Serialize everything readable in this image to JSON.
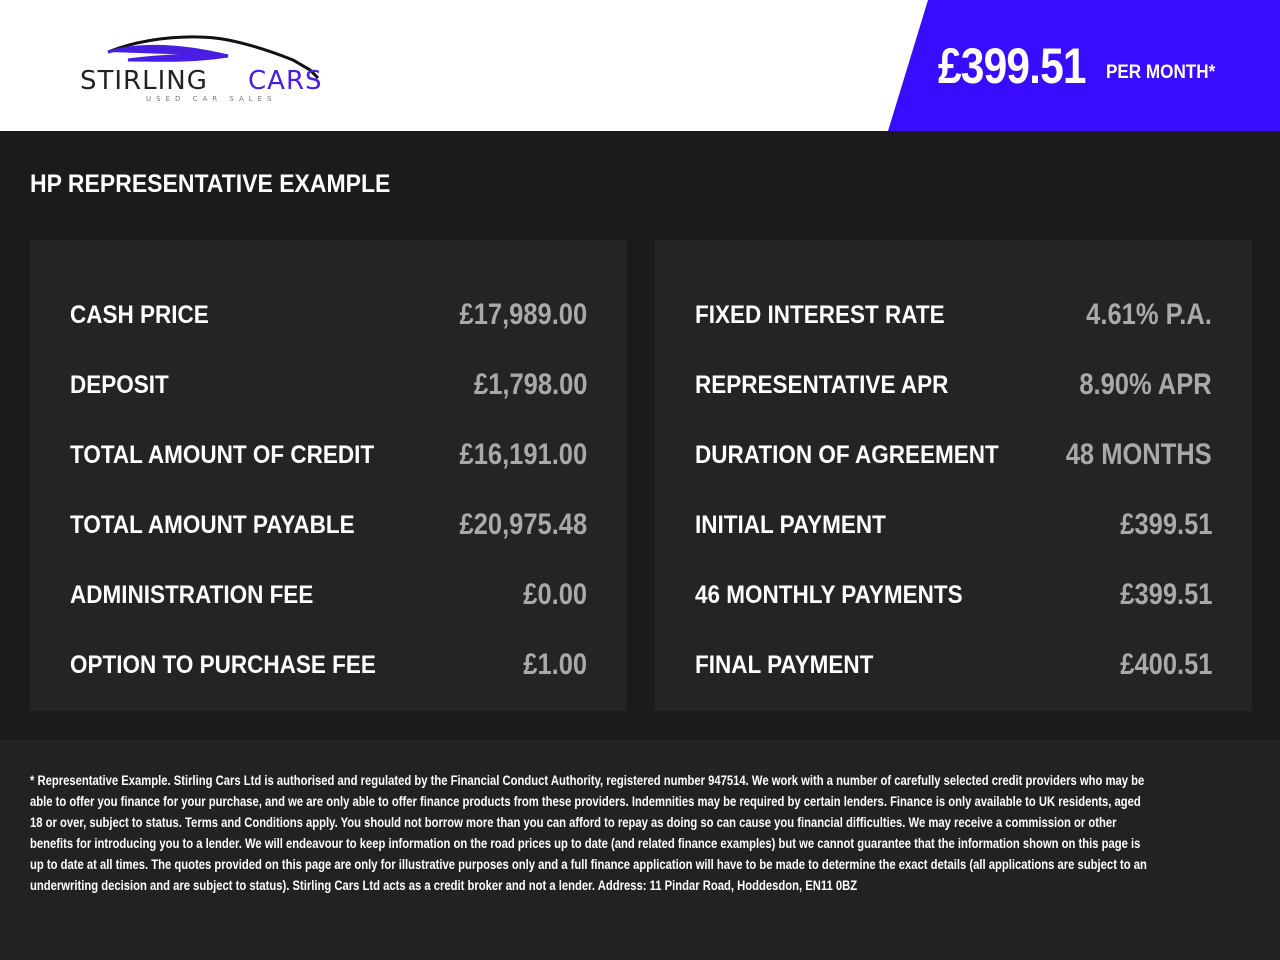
{
  "brand": {
    "name": "STIRLING CARS",
    "name_part1": "STIRLING",
    "name_part2": "CARS",
    "tagline": "USED CAR SALES",
    "accent": "#3a0cff"
  },
  "banner": {
    "price": "£399.51",
    "suffix": "PER MONTH*"
  },
  "section_title": "HP REPRESENTATIVE EXAMPLE",
  "left": [
    {
      "label": "CASH PRICE",
      "value": "£17,989.00"
    },
    {
      "label": "DEPOSIT",
      "value": "£1,798.00"
    },
    {
      "label": "TOTAL AMOUNT OF CREDIT",
      "value": "£16,191.00"
    },
    {
      "label": "TOTAL AMOUNT PAYABLE",
      "value": "£20,975.48"
    },
    {
      "label": "ADMINISTRATION FEE",
      "value": "£0.00"
    },
    {
      "label": "OPTION TO PURCHASE FEE",
      "value": "£1.00"
    }
  ],
  "right": [
    {
      "label": "FIXED INTEREST RATE",
      "value": "4.61% P.A."
    },
    {
      "label": "REPRESENTATIVE APR",
      "value": "8.90% APR"
    },
    {
      "label": "DURATION OF AGREEMENT",
      "value": "48 MONTHS"
    },
    {
      "label": "INITIAL PAYMENT",
      "value": "£399.51"
    },
    {
      "label": "46 MONTHLY PAYMENTS",
      "value": "£399.51"
    },
    {
      "label": "FINAL PAYMENT",
      "value": "£400.51"
    }
  ],
  "disclaimer": "* Representative Example. Stirling Cars Ltd is authorised and regulated by the Financial Conduct Authority, registered number 947514. We work with a number of carefully selected credit providers who may be able to offer you finance for your purchase, and we are only able to offer finance products from these providers. Indemnities may be required by certain lenders. Finance is only available to UK residents, aged 18 or over, subject to status. Terms and Conditions apply. You should not borrow more than you can afford to repay as doing so can cause you financial difficulties. We may receive a commission or other benefits for introducing you to a lender. We will endeavour to keep information on the road prices up to date (and related finance examples) but we cannot guarantee that the information shown on this page is up to date at all times. The quotes provided on this page are only for illustrative purposes only and a full finance application will have to be made to determine the exact details (all applications are subject to an underwriting decision and are subject to status). Stirling Cars Ltd acts as a credit broker and not a lender. Address: 11 Pindar Road, Hoddesdon, EN11 0BZ"
}
